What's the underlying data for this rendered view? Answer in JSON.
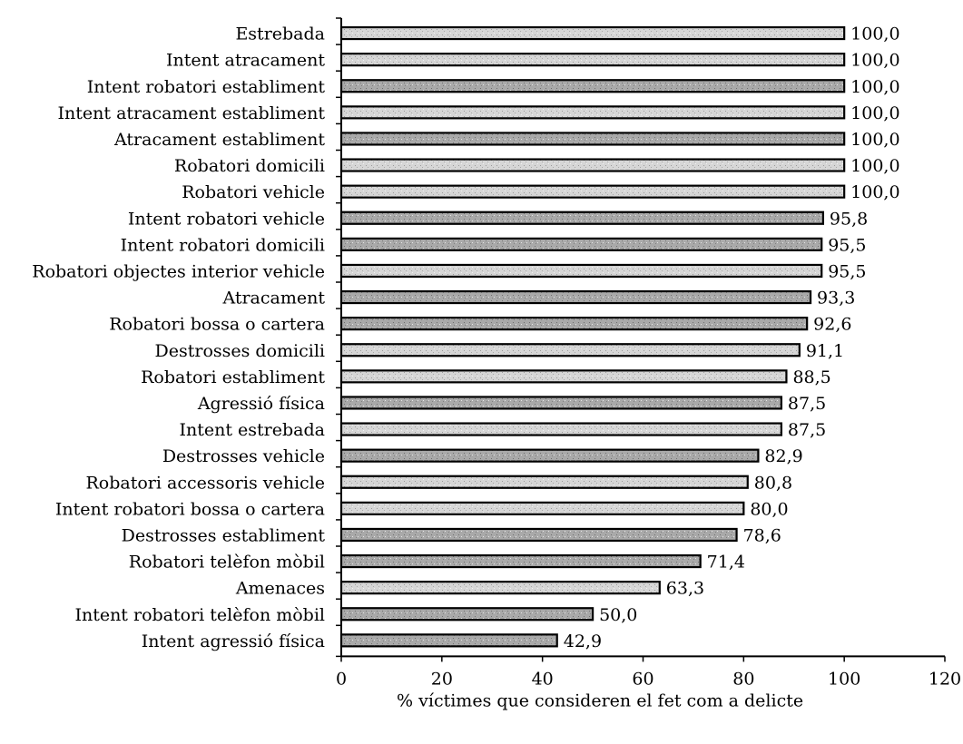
{
  "chart_data": {
    "type": "bar",
    "orientation": "horizontal",
    "categories": [
      "Estrebada",
      "Intent atracament",
      "Intent robatori establiment",
      "Intent atracament establiment",
      "Atracament establiment",
      "Robatori domicili",
      "Robatori vehicle",
      "Intent robatori vehicle",
      "Intent robatori domicili",
      "Robatori objectes interior vehicle",
      "Atracament",
      "Robatori bossa o cartera",
      "Destrosses domicili",
      "Robatori establiment",
      "Agressió física",
      "Intent estrebada",
      "Destrosses vehicle",
      "Robatori accessoris vehicle",
      "Intent robatori bossa o cartera",
      "Destrosses establiment",
      "Robatori telèfon mòbil",
      "Amenaces",
      "Intent robatori telèfon mòbil",
      "Intent agressió física"
    ],
    "values": [
      100.0,
      100.0,
      100.0,
      100.0,
      100.0,
      100.0,
      100.0,
      95.8,
      95.5,
      95.5,
      93.3,
      92.6,
      91.1,
      88.5,
      87.5,
      87.5,
      82.9,
      80.8,
      80.0,
      78.6,
      71.4,
      63.3,
      50.0,
      42.9
    ],
    "value_labels": [
      "100,0",
      "100,0",
      "100,0",
      "100,0",
      "100,0",
      "100,0",
      "100,0",
      "95,8",
      "95,5",
      "95,5",
      "93,3",
      "92,6",
      "91,1",
      "88,5",
      "87,5",
      "87,5",
      "82,9",
      "80,8",
      "80,0",
      "78,6",
      "71,4",
      "63,3",
      "50,0",
      "42,9"
    ],
    "xlabel": "% víctimes que consideren el fet com a delicte",
    "ylabel": "",
    "title": "",
    "xlim": [
      0,
      120
    ],
    "xticks": [
      "0",
      "20",
      "40",
      "60",
      "80",
      "100",
      "120"
    ],
    "grid": false,
    "legend": "none",
    "colors": {
      "bar_fill": "#b8b8b8",
      "bar_fill_light": "#dadada",
      "bar_stroke": "#000000",
      "axis": "#000000"
    }
  }
}
